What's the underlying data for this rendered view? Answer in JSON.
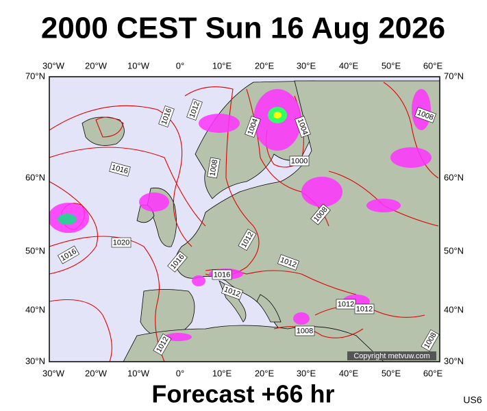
{
  "title": "2000 CEST Sun 16 Aug 2026",
  "footer": "Forecast +66 hr",
  "code": "US6",
  "copyright": "Copyright metvuw.com",
  "lon_labels": [
    "30°W",
    "20°W",
    "10°W",
    "0°",
    "10°E",
    "20°E",
    "30°E",
    "40°E",
    "50°E",
    "60°E"
  ],
  "lat_labels": [
    "70°N",
    "60°N",
    "50°N",
    "40°N",
    "30°N"
  ],
  "isobar_labels": [
    "1012",
    "1016",
    "1016",
    "1008",
    "1004",
    "1004",
    "1000",
    "1008",
    "1012",
    "1016",
    "1020",
    "1016",
    "1016",
    "1012",
    "1012",
    "1012",
    "1012",
    "1008",
    "1012",
    "1008",
    "1008"
  ]
}
